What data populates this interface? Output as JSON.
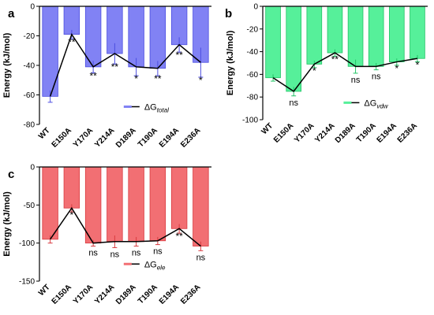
{
  "chart_data": [
    {
      "type": "bar",
      "panel_label": "a",
      "categories": [
        "WT",
        "E150A",
        "Y170A",
        "Y214A",
        "D189A",
        "T190A",
        "E194A",
        "E236A"
      ],
      "series": [
        {
          "name": "ΔGtotal",
          "values": [
            -61,
            -19,
            -41,
            -32,
            -41,
            -42,
            -26,
            -38
          ],
          "errors": [
            4,
            3,
            4,
            7,
            6,
            5,
            5,
            10
          ]
        }
      ],
      "significance": [
        "",
        "**",
        "**",
        "**",
        "*",
        "**",
        "**",
        "*"
      ],
      "legend": {
        "base": "ΔG",
        "sub": "total",
        "placement": "bottom-right"
      },
      "ylabel": "Energy (kJ/mol)",
      "ylim": [
        -80,
        0
      ],
      "yticks": [
        -80,
        -60,
        -40,
        -20,
        0
      ],
      "grid": false,
      "colors": {
        "bar": "#8182f4",
        "edge": "#4c4ee0",
        "line": "#000000"
      }
    },
    {
      "type": "bar",
      "panel_label": "b",
      "categories": [
        "WT",
        "E150A",
        "Y170A",
        "Y214A",
        "D189A",
        "T190A",
        "E194A",
        "E236A"
      ],
      "series": [
        {
          "name": "ΔGvdw",
          "values": [
            -63,
            -75,
            -51,
            -41,
            -53,
            -53,
            -49,
            -46
          ],
          "errors": [
            3,
            4,
            3,
            3,
            6,
            3,
            3,
            3
          ]
        }
      ],
      "significance": [
        "",
        "ns",
        "*",
        "**",
        "ns",
        "ns",
        "*",
        "*"
      ],
      "legend": {
        "base": "ΔG",
        "sub": "vdw",
        "placement": "bottom-right"
      },
      "ylabel": "Energy (kJ/mol)",
      "ylim": [
        -100,
        0
      ],
      "yticks": [
        -100,
        -80,
        -60,
        -40,
        -20,
        0
      ],
      "grid": false,
      "colors": {
        "bar": "#56f09a",
        "edge": "#22c466",
        "line": "#000000"
      }
    },
    {
      "type": "bar",
      "panel_label": "c",
      "categories": [
        "WT",
        "E150A",
        "Y170A",
        "Y214A",
        "D189A",
        "T190A",
        "E194A",
        "E236A"
      ],
      "series": [
        {
          "name": "ΔGele",
          "values": [
            -95,
            -54,
            -100,
            -98,
            -98,
            -97,
            -81,
            -104
          ],
          "errors": [
            5,
            5,
            4,
            8,
            6,
            5,
            6,
            6
          ]
        }
      ],
      "significance": [
        "",
        "*",
        "ns",
        "ns",
        "ns",
        "ns",
        "**",
        "ns"
      ],
      "legend": {
        "base": "ΔG",
        "sub": "ele",
        "placement": "bottom-right"
      },
      "ylabel": "Energy (kJ/mol)",
      "ylim": [
        -150,
        0
      ],
      "yticks": [
        -150,
        -100,
        -50,
        0
      ],
      "grid": false,
      "colors": {
        "bar": "#f26f73",
        "edge": "#d83b40",
        "line": "#000000"
      }
    }
  ]
}
